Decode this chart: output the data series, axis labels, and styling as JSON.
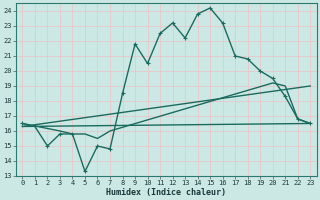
{
  "xlabel": "Humidex (Indice chaleur)",
  "xlim": [
    -0.5,
    23.5
  ],
  "ylim": [
    13,
    24.5
  ],
  "yticks": [
    13,
    14,
    15,
    16,
    17,
    18,
    19,
    20,
    21,
    22,
    23,
    24
  ],
  "xticks": [
    0,
    1,
    2,
    3,
    4,
    5,
    6,
    7,
    8,
    9,
    10,
    11,
    12,
    13,
    14,
    15,
    16,
    17,
    18,
    19,
    20,
    21,
    22,
    23
  ],
  "bg_color": "#cce8e5",
  "grid_color": "#e8c8c8",
  "line_color": "#1a6b5e",
  "lines": [
    {
      "x": [
        0,
        1,
        2,
        3,
        4,
        5,
        6,
        7,
        8,
        9,
        10,
        11,
        12,
        13,
        14,
        15,
        16,
        17,
        18,
        19,
        20,
        21,
        22,
        23
      ],
      "y": [
        16.5,
        16.3,
        15.0,
        15.8,
        15.8,
        13.3,
        15.0,
        14.8,
        18.5,
        21.8,
        20.5,
        22.5,
        23.2,
        22.2,
        23.8,
        24.2,
        23.2,
        21.0,
        20.8,
        20.0,
        19.5,
        18.3,
        16.8,
        16.5
      ],
      "marker": true
    },
    {
      "x": [
        0,
        3,
        4,
        5,
        6,
        7,
        20,
        21,
        22,
        23
      ],
      "y": [
        16.5,
        16.0,
        15.8,
        15.8,
        15.5,
        16.0,
        19.2,
        19.0,
        16.8,
        16.5
      ],
      "marker": false
    },
    {
      "x": [
        0,
        23
      ],
      "y": [
        16.3,
        19.0
      ],
      "marker": false
    },
    {
      "x": [
        0,
        23
      ],
      "y": [
        16.3,
        16.5
      ],
      "marker": false
    }
  ]
}
